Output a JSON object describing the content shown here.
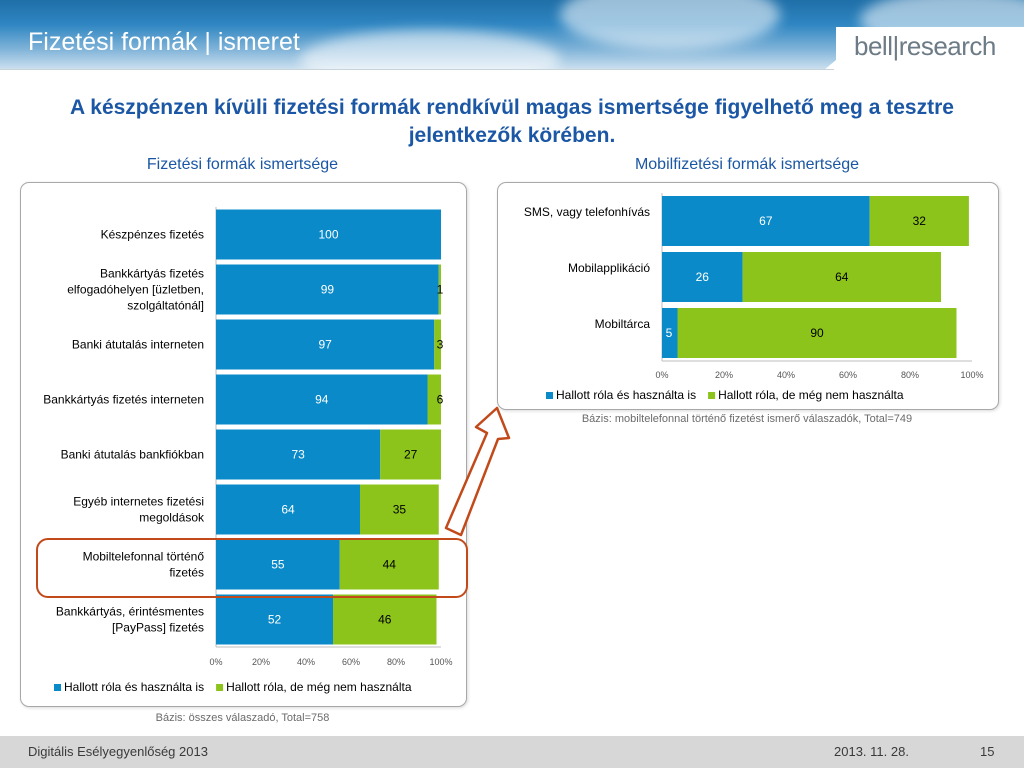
{
  "header": {
    "title": "Fizetési formák | ismeret",
    "logo": "bell|research"
  },
  "headline": "A készpénzen kívüli fizetési formák rendkívül magas ismertsége figyelhető meg a tesztre jelentkezők körében.",
  "colors": {
    "blue": "#0a8ac8",
    "green": "#8cc41b",
    "title_blue": "#1b57a4",
    "highlight": "#c24a1a"
  },
  "chart_data": [
    {
      "type": "bar",
      "orientation": "horizontal-stacked",
      "title": "Fizetési formák ismertsége",
      "categories": [
        [
          "Készpénzes fizetés"
        ],
        [
          "Bankkártyás fizetés",
          "elfogadóhelyen [üzletben,",
          "szolgáltatónál]"
        ],
        [
          "Banki átutalás interneten"
        ],
        [
          "Bankkártyás fizetés interneten"
        ],
        [
          "Banki átutalás bankfiókban"
        ],
        [
          "Egyéb internetes fizetési",
          "megoldások"
        ],
        [
          "Mobiltelefonnal történő",
          "fizetés"
        ],
        [
          "Bankkártyás, érintésmentes",
          "[PayPass] fizetés"
        ]
      ],
      "series": [
        {
          "name": "Hallott róla és használta is",
          "values": [
            100,
            99,
            97,
            94,
            73,
            64,
            55,
            52
          ]
        },
        {
          "name": "Hallott róla, de még nem használta",
          "values": [
            null,
            1,
            3,
            6,
            27,
            35,
            44,
            46
          ]
        }
      ],
      "xticks": [
        "0%",
        "20%",
        "40%",
        "60%",
        "80%",
        "100%"
      ],
      "xlim": [
        0,
        100
      ],
      "legend_position": "bottom",
      "highlighted_category": "Mobiltelefonnal történő fizetés",
      "base_note": "Bázis: összes válaszadó, Total=758"
    },
    {
      "type": "bar",
      "orientation": "horizontal-stacked",
      "title": "Mobilfizetési formák ismertsége",
      "categories": [
        [
          "SMS, vagy telefonhívás"
        ],
        [
          "Mobilapplikáció"
        ],
        [
          "Mobiltárca"
        ]
      ],
      "series": [
        {
          "name": "Hallott róla és használta is",
          "values": [
            67,
            26,
            5
          ]
        },
        {
          "name": "Hallott róla, de még nem használta",
          "values": [
            32,
            64,
            90
          ]
        }
      ],
      "xticks": [
        "0%",
        "20%",
        "40%",
        "60%",
        "80%",
        "100%"
      ],
      "xlim": [
        0,
        100
      ],
      "legend_position": "bottom",
      "base_note": "Bázis: mobiltelefonnal történő fizetést ismerő válaszadók, Total=749"
    }
  ],
  "footer": {
    "left": "Digitális Esélyegyenlőség 2013",
    "date": "2013. 11. 28.",
    "page": "15"
  }
}
